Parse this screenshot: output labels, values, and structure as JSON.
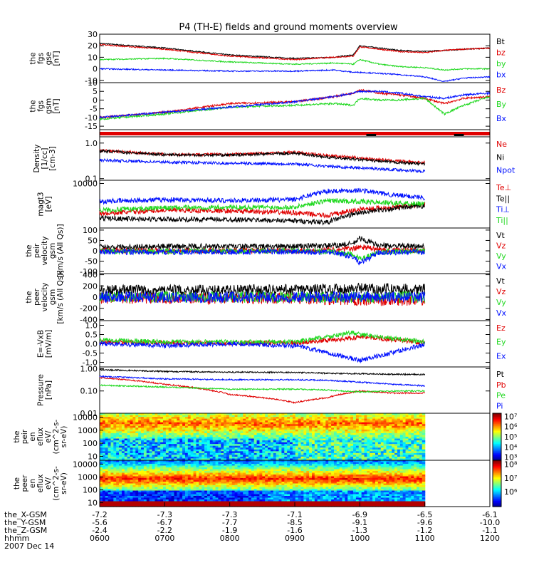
{
  "title": "P4 (TH-E) fields and ground moments overview",
  "colors": {
    "black": "#000000",
    "red": "#e00000",
    "green": "#1fd81f",
    "blue": "#0010ff"
  },
  "chart_data": [
    {
      "type": "line",
      "panel": "fgs_gse",
      "ylabel": [
        "the",
        "fgs",
        "gse",
        "[nT]"
      ],
      "ylim": [
        -12,
        30
      ],
      "ticks": [
        "30",
        "20",
        "10",
        "0",
        "-10"
      ],
      "tickvals": [
        30,
        20,
        10,
        0,
        -10
      ],
      "series": [
        {
          "name": "Bt",
          "color": "black",
          "x": [
            600,
            700,
            800,
            900,
            960,
            990,
            1000,
            1030,
            1060,
            1100,
            1130,
            1160,
            1200
          ],
          "y": [
            22,
            18,
            12,
            9,
            10,
            12,
            20,
            18,
            16,
            15,
            16,
            17,
            18
          ]
        },
        {
          "name": "bz",
          "color": "red",
          "x": [
            600,
            700,
            800,
            900,
            960,
            990,
            1000,
            1030,
            1060,
            1100,
            1130,
            1160,
            1200
          ],
          "y": [
            21,
            17,
            11,
            8,
            10,
            11,
            19,
            17,
            15,
            14,
            16,
            17,
            18
          ]
        },
        {
          "name": "by",
          "color": "green",
          "x": [
            600,
            700,
            800,
            900,
            960,
            990,
            1000,
            1030,
            1060,
            1100,
            1130,
            1160,
            1200
          ],
          "y": [
            8,
            9,
            6,
            4,
            5,
            4,
            8,
            4,
            2,
            1,
            -1,
            0,
            0
          ]
        },
        {
          "name": "bx",
          "color": "blue",
          "x": [
            600,
            700,
            800,
            900,
            960,
            990,
            1000,
            1030,
            1060,
            1100,
            1130,
            1160,
            1200
          ],
          "y": [
            0,
            -1,
            -2,
            -2,
            -1,
            -3,
            -3,
            -4,
            -5,
            -7,
            -11,
            -8,
            -7
          ]
        }
      ]
    },
    {
      "type": "line",
      "panel": "fgs_gsm",
      "ylabel": [
        "the",
        "fgs",
        "gsm",
        "[nT]"
      ],
      "ylim": [
        -17,
        10
      ],
      "ticks": [
        "10",
        "5",
        "0",
        "-5",
        "-10",
        "-15"
      ],
      "tickvals": [
        10,
        5,
        0,
        -5,
        -10,
        -15
      ],
      "series": [
        {
          "name": "Bz",
          "color": "red",
          "x": [
            600,
            700,
            800,
            900,
            960,
            990,
            1000,
            1030,
            1060,
            1100,
            1130,
            1160,
            1200
          ],
          "y": [
            -10,
            -7,
            -2,
            -1,
            2,
            4,
            6,
            4,
            3,
            1,
            -2,
            1,
            2
          ]
        },
        {
          "name": "By",
          "color": "green",
          "x": [
            600,
            700,
            800,
            900,
            960,
            990,
            1000,
            1030,
            1060,
            1100,
            1130,
            1160,
            1200
          ],
          "y": [
            -11,
            -8,
            -4,
            -3,
            -2,
            -3,
            1,
            0,
            0,
            1,
            -8,
            -3,
            2
          ]
        },
        {
          "name": "Bx",
          "color": "blue",
          "x": [
            600,
            700,
            800,
            900,
            960,
            990,
            1000,
            1030,
            1060,
            1100,
            1130,
            1160,
            1200
          ],
          "y": [
            -10,
            -7,
            -4,
            -1,
            2,
            4,
            5,
            5,
            4,
            2,
            1,
            3,
            4
          ]
        }
      ]
    },
    {
      "type": "bar",
      "panel": "flags",
      "color": "red",
      "segments": [
        [
          1010,
          1025
        ],
        [
          1145,
          1160
        ]
      ]
    },
    {
      "type": "line",
      "panel": "density",
      "scale": "log",
      "ylabel": [
        "Density",
        "[1/cc]",
        "[cm-3]"
      ],
      "ylim": [
        0.09,
        1.5
      ],
      "ticks": [
        "1.0",
        "0.1"
      ],
      "tickvals": [
        1.0,
        0.1
      ],
      "series": [
        {
          "name": "Ne",
          "color": "red",
          "x": [
            600,
            700,
            800,
            900,
            950,
            1000,
            1050,
            1100
          ],
          "y": [
            0.62,
            0.48,
            0.48,
            0.55,
            0.45,
            0.38,
            0.32,
            0.28
          ]
        },
        {
          "name": "Ni",
          "color": "black",
          "x": [
            600,
            700,
            800,
            900,
            950,
            1000,
            1050,
            1100
          ],
          "y": [
            0.6,
            0.47,
            0.46,
            0.52,
            0.4,
            0.34,
            0.29,
            0.26
          ]
        },
        {
          "name": "Npot",
          "color": "blue",
          "x": [
            600,
            700,
            800,
            900,
            950,
            1000,
            1050,
            1100
          ],
          "y": [
            0.33,
            0.29,
            0.27,
            0.26,
            0.22,
            0.2,
            0.18,
            0.16
          ]
        }
      ]
    },
    {
      "type": "line",
      "panel": "temperature",
      "scale": "log",
      "ylabel": [
        "magt3",
        "[eV]"
      ],
      "ylim": [
        800,
        12000
      ],
      "ticks": [
        "10000"
      ],
      "tickvals": [
        10000
      ],
      "series": [
        {
          "name": "Te⊥",
          "color": "red",
          "x": [
            600,
            700,
            800,
            900,
            950,
            1000,
            1050,
            1100
          ],
          "y": [
            1800,
            2200,
            2100,
            1900,
            1600,
            2300,
            2600,
            3000
          ]
        },
        {
          "name": "Te||",
          "color": "black",
          "x": [
            600,
            700,
            800,
            900,
            950,
            1000,
            1050,
            1100
          ],
          "y": [
            1400,
            1300,
            1300,
            1200,
            1100,
            1900,
            2400,
            2800
          ]
        },
        {
          "name": "Ti⊥",
          "color": "blue",
          "x": [
            600,
            700,
            800,
            900,
            950,
            1000,
            1050,
            1100
          ],
          "y": [
            3600,
            4000,
            3800,
            4000,
            6500,
            6800,
            5200,
            4500
          ]
        },
        {
          "name": "Ti||",
          "color": "green",
          "x": [
            600,
            700,
            800,
            900,
            950,
            1000,
            1050,
            1100
          ],
          "y": [
            2200,
            2500,
            2600,
            2600,
            3800,
            3600,
            3300,
            3200
          ]
        }
      ]
    },
    {
      "type": "line",
      "panel": "peir_velocity",
      "ylabel": [
        "the",
        "peir",
        "velocity",
        "gsm",
        "[km/s (All Qs)]"
      ],
      "ylim": [
        -110,
        110
      ],
      "ticks": [
        "100",
        "50",
        "0",
        "-50",
        "-100"
      ],
      "tickvals": [
        100,
        50,
        0,
        -50,
        -100
      ],
      "series": [
        {
          "name": "Vt",
          "color": "black",
          "x": [
            600,
            700,
            800,
            900,
            960,
            990,
            1000,
            1030,
            1100
          ],
          "y": [
            18,
            22,
            20,
            22,
            25,
            35,
            60,
            25,
            20
          ]
        },
        {
          "name": "Vz",
          "color": "red",
          "x": [
            600,
            700,
            800,
            900,
            960,
            990,
            1000,
            1030,
            1100
          ],
          "y": [
            2,
            0,
            2,
            0,
            5,
            10,
            20,
            5,
            0
          ]
        },
        {
          "name": "Vy",
          "color": "green",
          "x": [
            600,
            700,
            800,
            900,
            960,
            990,
            1000,
            1030,
            1100
          ],
          "y": [
            -2,
            -3,
            -2,
            0,
            -5,
            -20,
            -40,
            -5,
            -2
          ]
        },
        {
          "name": "Vx",
          "color": "blue",
          "x": [
            600,
            700,
            800,
            900,
            960,
            990,
            1000,
            1030,
            1100
          ],
          "y": [
            -5,
            -6,
            -5,
            -4,
            -8,
            -30,
            -60,
            -8,
            -5
          ]
        }
      ]
    },
    {
      "type": "line",
      "panel": "peer_velocity",
      "ylabel": [
        "the",
        "peer",
        "velocity",
        "gsm",
        "[km/s (All Qs)]"
      ],
      "ylim": [
        -420,
        420
      ],
      "ticks": [
        "400",
        "200",
        "0",
        "-200",
        "-400"
      ],
      "tickvals": [
        400,
        200,
        0,
        -200,
        -400
      ],
      "series": [
        {
          "name": "Vt",
          "color": "black",
          "x": [
            600,
            700,
            800,
            900,
            1000,
            1100
          ],
          "y": [
            120,
            120,
            120,
            130,
            150,
            140
          ]
        },
        {
          "name": "Vz",
          "color": "red",
          "x": [
            600,
            700,
            800,
            900,
            1000,
            1100
          ],
          "y": [
            -20,
            -20,
            -20,
            -20,
            -60,
            -50
          ]
        },
        {
          "name": "Vy",
          "color": "green",
          "x": [
            600,
            700,
            800,
            900,
            1000,
            1100
          ],
          "y": [
            0,
            0,
            0,
            0,
            0,
            0
          ]
        },
        {
          "name": "Vx",
          "color": "blue",
          "x": [
            600,
            700,
            800,
            900,
            1000,
            1100
          ],
          "y": [
            0,
            0,
            0,
            0,
            0,
            0
          ]
        }
      ]
    },
    {
      "type": "line",
      "panel": "efield",
      "ylabel": [
        "E=-VxB",
        "[mV/m]"
      ],
      "ylim": [
        -1.25,
        1.25
      ],
      "ticks": [
        "1.0",
        "0.5",
        "0.0",
        "-0.5",
        "-1.0"
      ],
      "tickvals": [
        1.0,
        0.5,
        0.0,
        -0.5,
        -1.0
      ],
      "series": [
        {
          "name": "Ez",
          "color": "red",
          "x": [
            600,
            700,
            800,
            900,
            990,
            1000,
            1100
          ],
          "y": [
            0.1,
            0.05,
            0.05,
            0.05,
            0.3,
            0.4,
            0.05
          ]
        },
        {
          "name": "Ey",
          "color": "green",
          "x": [
            600,
            700,
            800,
            900,
            990,
            1000,
            1100
          ],
          "y": [
            0.2,
            0.1,
            0.1,
            0.1,
            0.6,
            0.5,
            0.1
          ]
        },
        {
          "name": "Ex",
          "color": "blue",
          "x": [
            600,
            700,
            800,
            900,
            990,
            1000,
            1100
          ],
          "y": [
            0,
            -0.1,
            0,
            -0.1,
            -0.8,
            -0.9,
            -0.05
          ]
        }
      ]
    },
    {
      "type": "line",
      "panel": "pressure",
      "scale": "log",
      "ylabel": [
        "Pressure",
        "[nPa]"
      ],
      "ylim": [
        0.01,
        1.2
      ],
      "ticks": [
        "1.00",
        "0.10",
        "0.01"
      ],
      "tickvals": [
        1.0,
        0.1,
        0.01
      ],
      "series": [
        {
          "name": "Pt",
          "color": "black",
          "x": [
            600,
            700,
            800,
            900,
            950,
            1000,
            1050,
            1100
          ],
          "y": [
            0.9,
            0.75,
            0.7,
            0.68,
            0.62,
            0.6,
            0.56,
            0.55
          ]
        },
        {
          "name": "Pb",
          "color": "red",
          "x": [
            600,
            700,
            800,
            900,
            950,
            1000,
            1050,
            1100
          ],
          "y": [
            0.4,
            0.2,
            0.07,
            0.03,
            0.05,
            0.1,
            0.08,
            0.08
          ]
        },
        {
          "name": "Pe",
          "color": "green",
          "x": [
            600,
            700,
            800,
            900,
            950,
            1000,
            1050,
            1100
          ],
          "y": [
            0.18,
            0.15,
            0.12,
            0.12,
            0.11,
            0.09,
            0.1,
            0.1
          ]
        },
        {
          "name": "Pi",
          "color": "blue",
          "x": [
            600,
            700,
            800,
            900,
            950,
            1000,
            1050,
            1100
          ],
          "y": [
            0.45,
            0.35,
            0.32,
            0.32,
            0.3,
            0.25,
            0.2,
            0.17
          ]
        }
      ]
    },
    {
      "type": "heatmap",
      "panel": "peir_spec",
      "ylabel": [
        "the",
        "peir",
        "en",
        "eflux",
        "eV/",
        "(cm^2-s-",
        "sr-eV)"
      ],
      "ylim": [
        5,
        20000
      ],
      "ticks": [
        "10000",
        "1000",
        "100",
        "10"
      ],
      "tickvals": [
        10000,
        1000,
        100,
        10
      ],
      "colorbar": {
        "ticks": [
          "10⁷",
          "10⁶",
          "10⁵",
          "10⁴",
          "10³"
        ],
        "min": 2.7,
        "max": 7.3
      }
    },
    {
      "type": "heatmap",
      "panel": "peer_spec",
      "ylabel": [
        "the",
        "peer",
        "en",
        "eflux",
        "eV/",
        "(cm^2-s-",
        "sr-eV)"
      ],
      "ylim": [
        5,
        20000
      ],
      "ticks": [
        "10000",
        "1000",
        "100",
        "10"
      ],
      "tickvals": [
        10000,
        1000,
        100,
        10
      ],
      "colorbar": {
        "ticks": [
          "10⁸",
          "10⁷",
          "10⁶"
        ],
        "min": 5.3,
        "max": 8.7
      }
    }
  ],
  "ephemeris": {
    "rows": [
      {
        "label": "the_X-GSM",
        "values": [
          "-7.2",
          "-7.3",
          "-7.3",
          "-7.1",
          "-6.9",
          "-6.5",
          "-6.1"
        ]
      },
      {
        "label": "the_Y-GSM",
        "values": [
          "-5.6",
          "-6.7",
          "-7.7",
          "-8.5",
          "-9.1",
          "-9.6",
          "-10.0"
        ]
      },
      {
        "label": "the_Z-GSM",
        "values": [
          "-2.4",
          "-2.2",
          "-1.9",
          "-1.6",
          "-1.3",
          "-1.2",
          "-1.1"
        ]
      },
      {
        "label": "hhmm",
        "values": [
          "0600",
          "0700",
          "0800",
          "0900",
          "1000",
          "1100",
          "1200"
        ]
      }
    ],
    "date": "2007 Dec 14"
  },
  "time": {
    "start": 600,
    "end": 1200,
    "data_end": 1100,
    "major": [
      600,
      700,
      800,
      900,
      1000,
      1100,
      1200
    ]
  }
}
